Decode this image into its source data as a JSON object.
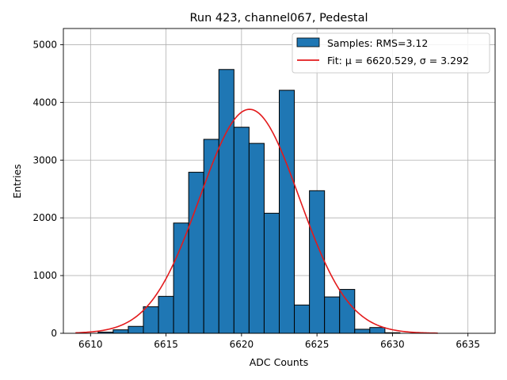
{
  "chart_data": {
    "type": "bar",
    "title": "Run 423, channel067, Pedestal",
    "xlabel": "ADC Counts",
    "ylabel": "Entries",
    "xlim": [
      6608.2,
      6636.8
    ],
    "ylim": [
      0,
      5280
    ],
    "xticks": [
      6610,
      6615,
      6620,
      6625,
      6630,
      6635
    ],
    "yticks": [
      0,
      1000,
      2000,
      3000,
      4000,
      5000
    ],
    "grid": true,
    "legend_position": "top-right",
    "bin_width": 1,
    "bins": [
      {
        "x": 6611,
        "value": 20
      },
      {
        "x": 6612,
        "value": 60
      },
      {
        "x": 6613,
        "value": 120
      },
      {
        "x": 6614,
        "value": 460
      },
      {
        "x": 6615,
        "value": 640
      },
      {
        "x": 6616,
        "value": 1910
      },
      {
        "x": 6617,
        "value": 2790
      },
      {
        "x": 6618,
        "value": 3360
      },
      {
        "x": 6619,
        "value": 4570
      },
      {
        "x": 6620,
        "value": 3570
      },
      {
        "x": 6621,
        "value": 3290
      },
      {
        "x": 6622,
        "value": 2080
      },
      {
        "x": 6623,
        "value": 4210
      },
      {
        "x": 6624,
        "value": 490
      },
      {
        "x": 6625,
        "value": 2470
      },
      {
        "x": 6626,
        "value": 630
      },
      {
        "x": 6627,
        "value": 760
      },
      {
        "x": 6628,
        "value": 70
      },
      {
        "x": 6629,
        "value": 100
      },
      {
        "x": 6630,
        "value": 10
      }
    ],
    "fit": {
      "mu": 6620.529,
      "sigma": 3.292,
      "amplitude": 3880,
      "x_range": [
        6609,
        6633
      ]
    },
    "legend": [
      {
        "label": "Samples: RMS=3.12",
        "kind": "patch"
      },
      {
        "label": "Fit: μ = 6620.529, σ = 3.292",
        "kind": "line"
      }
    ],
    "colors": {
      "bar_fill": "#1f77b4",
      "bar_edge": "#000000",
      "fit_line": "#e31a1c",
      "grid": "#b0b0b0"
    }
  }
}
